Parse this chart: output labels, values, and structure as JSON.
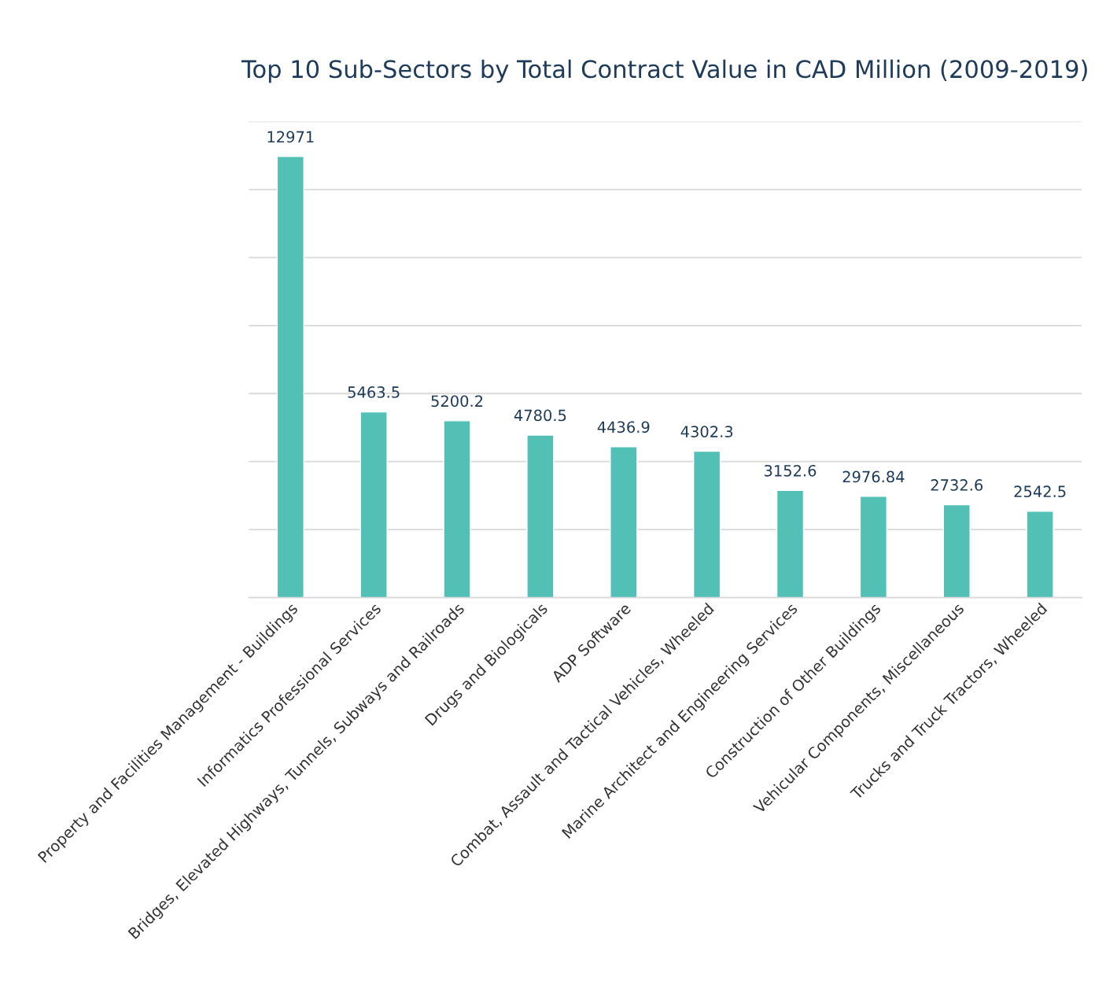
{
  "chart_data": {
    "type": "bar",
    "title": "Top 10 Sub-Sectors by Total Contract Value in CAD Million (2009-2019)",
    "categories": [
      "Property and Facilities Management - Buildings",
      "Informatics Professional Services",
      "Bridges, Elevated Highways, Tunnels, Subways and Railroads",
      "Drugs and Biologicals",
      "ADP Software",
      "Combat, Assault and Tactical Vehicles, Wheeled",
      "Marine Architect and Engineering Services",
      "Construction of Other Buildings",
      "Vehicular Components, Miscellaneous",
      "Trucks and Truck Tractors, Wheeled"
    ],
    "values": [
      12971,
      5463.5,
      5200.2,
      4780.5,
      4436.9,
      4302.3,
      3152.6,
      2976.84,
      2732.6,
      2542.5
    ],
    "value_labels": [
      "12971",
      "5463.5",
      "5200.2",
      "4780.5",
      "4436.9",
      "4302.3",
      "3152.6",
      "2976.84",
      "2732.6",
      "2542.5"
    ],
    "color": "#52c0b4",
    "ylim": [
      0,
      14000
    ],
    "yticks": [
      {
        "value": 0,
        "label": null
      },
      {
        "value": 2000,
        "label": null
      },
      {
        "value": 4000,
        "label": null
      },
      {
        "value": 6000,
        "label": null
      },
      {
        "value": 8000,
        "label": null
      },
      {
        "value": 10000,
        "label": null
      },
      {
        "value": 12000,
        "label": null
      },
      {
        "value": 14000,
        "label": null
      }
    ],
    "grid": "y",
    "tick_labels": "x"
  }
}
